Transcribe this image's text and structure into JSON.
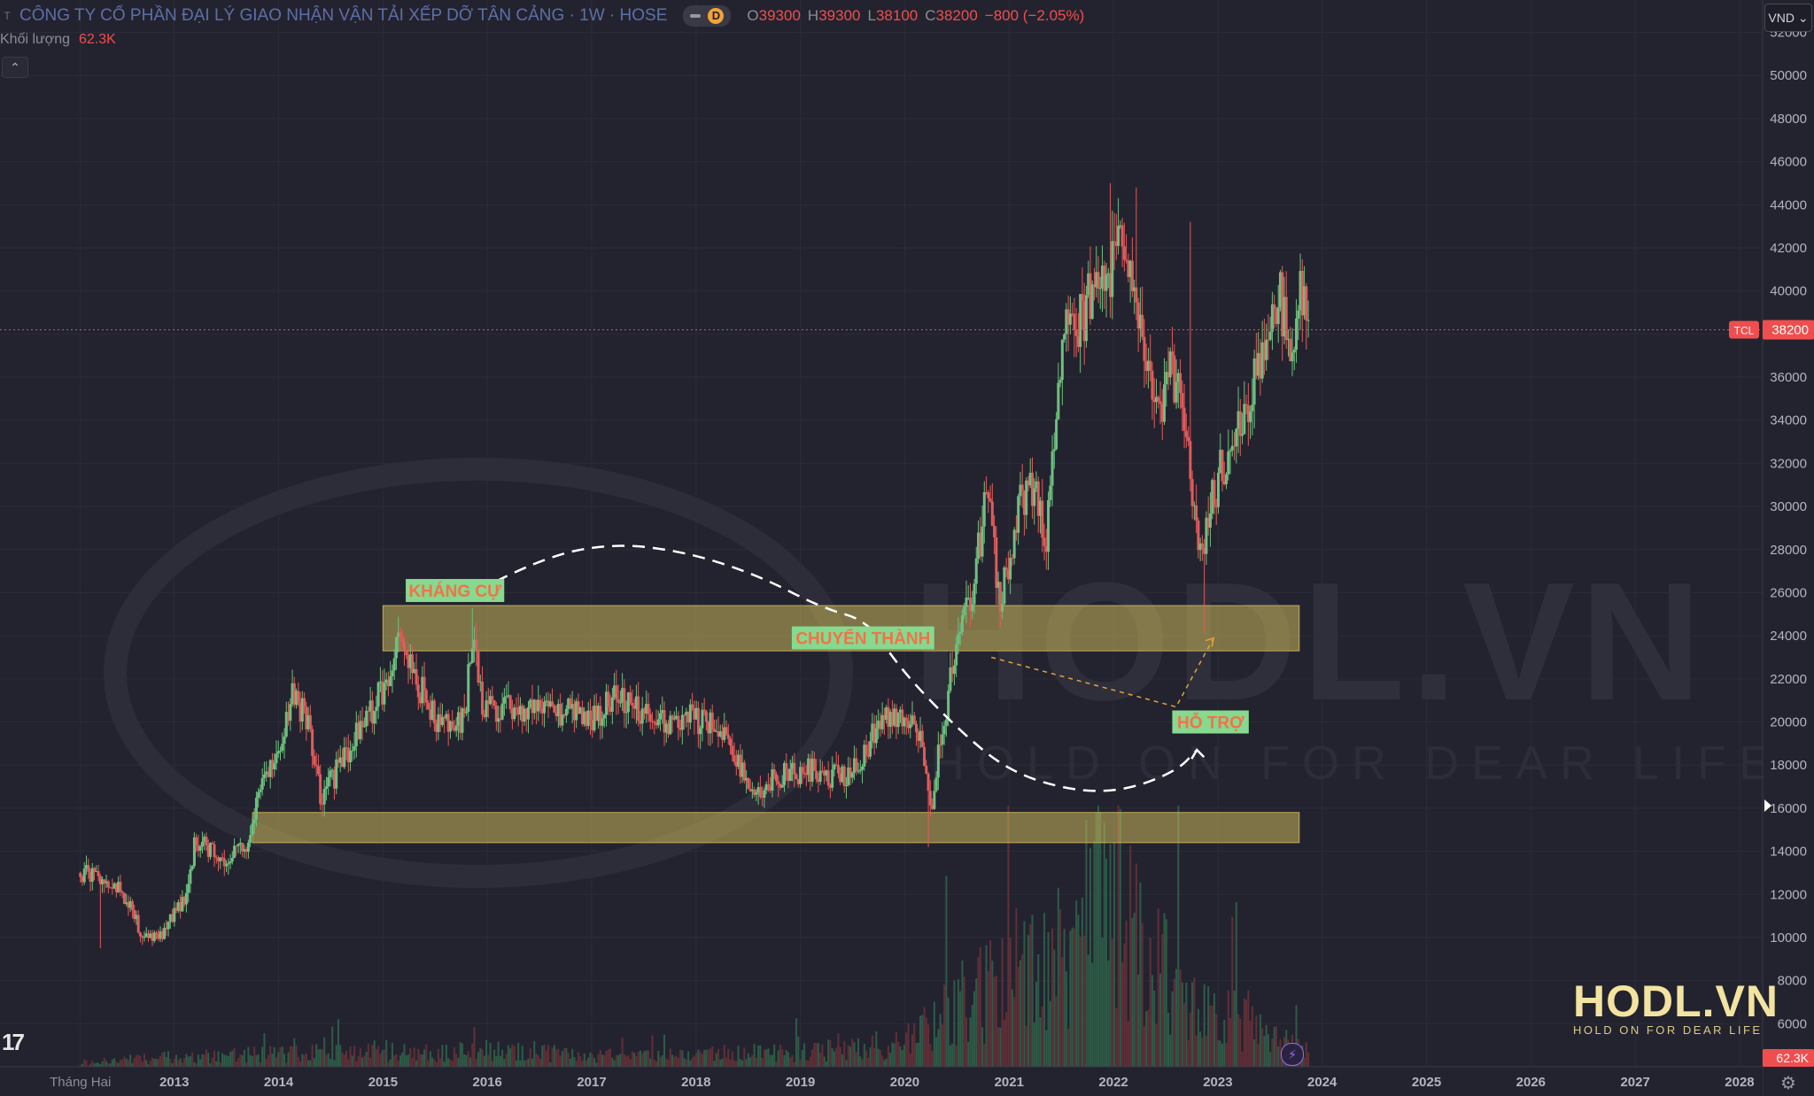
{
  "header": {
    "symbol_icon": "T",
    "title": "CÔNG TY CỔ PHẦN ĐẠI LÝ GIAO NHẬN VẬN TẢI XẾP DỠ TÂN CẢNG · 1W · HOSE",
    "badge": "D",
    "ohlc": [
      {
        "k": "O",
        "v": "39300"
      },
      {
        "k": "H",
        "v": "39300"
      },
      {
        "k": "L",
        "v": "38100"
      },
      {
        "k": "C",
        "v": "38200"
      },
      {
        "k": "",
        "v": "−800 (−2.05%)"
      }
    ],
    "volume_label": "Khối lượng",
    "volume_value": "62.3K",
    "currency": "VND"
  },
  "colors": {
    "up": "#6fbf80",
    "down": "#e05c5c",
    "zone": "#c9b65a",
    "label_bg": "#86d98e",
    "label_text": "#f2724a",
    "price_line": "#f04e4e"
  },
  "chart_data": {
    "type": "candlestick",
    "title": "CÔNG TY CỔ PHẦN ĐẠI LÝ GIAO NHẬN VẬN TẢI XẾP DỠ TÂN CẢNG · 1W · HOSE",
    "ticker": "TCL",
    "last_price": 38200,
    "last_price_label": "38200",
    "volume_last_label": "62.3K",
    "y_ticks": [
      52000,
      50000,
      48000,
      46000,
      44000,
      42000,
      40000,
      38000,
      36000,
      34000,
      32000,
      30000,
      28000,
      26000,
      24000,
      22000,
      20000,
      18000,
      16000,
      14000,
      12000,
      10000,
      8000,
      6000
    ],
    "y_tick_labels": [
      "52000",
      "50000",
      "48000",
      "46000",
      "44000",
      "42000",
      "40000",
      "38000",
      "36000",
      "34000",
      "32000",
      "30000",
      "28000",
      "26000",
      "24000",
      "22000",
      "20000",
      "18000",
      "16000",
      "14000",
      "12000",
      "10000",
      "8000",
      "6000"
    ],
    "ylim": [
      4000,
      53500
    ],
    "x_labels": [
      "Tháng Hai",
      "2013",
      "2014",
      "2015",
      "2016",
      "2017",
      "2018",
      "2019",
      "2020",
      "2021",
      "2022",
      "2023",
      "2024",
      "2025",
      "2026",
      "2027",
      "2028"
    ],
    "x_label_dates": [
      2012.1,
      2013,
      2014,
      2015,
      2016,
      2017,
      2018,
      2019,
      2020,
      2021,
      2022,
      2023,
      2024,
      2025,
      2026,
      2027,
      2028
    ],
    "xlim": [
      2011.33,
      2028.17
    ],
    "price_path": [
      [
        2012.1,
        13000
      ],
      [
        2012.3,
        12800
      ],
      [
        2012.5,
        12200
      ],
      [
        2012.7,
        10000
      ],
      [
        2012.85,
        9900
      ],
      [
        2013.1,
        11800
      ],
      [
        2013.2,
        14500
      ],
      [
        2013.35,
        14000
      ],
      [
        2013.5,
        13600
      ],
      [
        2013.7,
        14200
      ],
      [
        2013.85,
        17500
      ],
      [
        2014.0,
        18800
      ],
      [
        2014.15,
        21500
      ],
      [
        2014.3,
        19500
      ],
      [
        2014.4,
        16500
      ],
      [
        2014.6,
        18000
      ],
      [
        2014.8,
        19800
      ],
      [
        2015.0,
        21500
      ],
      [
        2015.15,
        23800
      ],
      [
        2015.3,
        22200
      ],
      [
        2015.5,
        20000
      ],
      [
        2015.7,
        19800
      ],
      [
        2015.8,
        20500
      ],
      [
        2015.85,
        24500
      ],
      [
        2015.95,
        20500
      ],
      [
        2016.15,
        20800
      ],
      [
        2016.35,
        20300
      ],
      [
        2016.6,
        20600
      ],
      [
        2016.8,
        20400
      ],
      [
        2017.0,
        20000
      ],
      [
        2017.2,
        21000
      ],
      [
        2017.45,
        20700
      ],
      [
        2017.7,
        19800
      ],
      [
        2017.95,
        20200
      ],
      [
        2018.2,
        19800
      ],
      [
        2018.4,
        18000
      ],
      [
        2018.6,
        17000
      ],
      [
        2018.85,
        17500
      ],
      [
        2019.1,
        17800
      ],
      [
        2019.3,
        17400
      ],
      [
        2019.55,
        17800
      ],
      [
        2019.7,
        19500
      ],
      [
        2019.85,
        20500
      ],
      [
        2020.05,
        20000
      ],
      [
        2020.15,
        19000
      ],
      [
        2020.25,
        15500
      ],
      [
        2020.35,
        19500
      ],
      [
        2020.5,
        23500
      ],
      [
        2020.65,
        26000
      ],
      [
        2020.8,
        31000
      ],
      [
        2020.9,
        25500
      ],
      [
        2021.0,
        27500
      ],
      [
        2021.1,
        30000
      ],
      [
        2021.25,
        31000
      ],
      [
        2021.35,
        28500
      ],
      [
        2021.45,
        34000
      ],
      [
        2021.55,
        39000
      ],
      [
        2021.7,
        38500
      ],
      [
        2021.85,
        41500
      ],
      [
        2021.95,
        40500
      ],
      [
        2022.05,
        42500
      ],
      [
        2022.15,
        40500
      ],
      [
        2022.25,
        39000
      ],
      [
        2022.35,
        36000
      ],
      [
        2022.45,
        34500
      ],
      [
        2022.55,
        36500
      ],
      [
        2022.65,
        34500
      ],
      [
        2022.75,
        31000
      ],
      [
        2022.85,
        27500
      ],
      [
        2022.95,
        30500
      ],
      [
        2023.05,
        32000
      ],
      [
        2023.2,
        33500
      ],
      [
        2023.35,
        36000
      ],
      [
        2023.5,
        38500
      ],
      [
        2023.6,
        39500
      ],
      [
        2023.7,
        37000
      ],
      [
        2023.8,
        40000
      ],
      [
        2023.87,
        38200
      ]
    ],
    "spikes": [
      {
        "x": 2015.85,
        "high": 25300
      },
      {
        "x": 2020.22,
        "low": 14200
      },
      {
        "x": 2021.97,
        "high": 45000
      },
      {
        "x": 2022.22,
        "high": 44800
      },
      {
        "x": 2022.73,
        "high": 43200
      },
      {
        "x": 2022.88,
        "low": 24100
      },
      {
        "x": 2012.3,
        "low": 9500
      }
    ],
    "volume_max": 14000,
    "volume_profile": [
      [
        2012.1,
        300
      ],
      [
        2013.0,
        600
      ],
      [
        2014.0,
        800
      ],
      [
        2015.0,
        1000
      ],
      [
        2016.0,
        1000
      ],
      [
        2017.0,
        700
      ],
      [
        2018.0,
        800
      ],
      [
        2019.0,
        900
      ],
      [
        2020.0,
        1500
      ],
      [
        2020.5,
        4000
      ],
      [
        2020.9,
        5500
      ],
      [
        2021.3,
        6000
      ],
      [
        2021.7,
        8000
      ],
      [
        2021.95,
        11000
      ],
      [
        2022.2,
        8000
      ],
      [
        2022.6,
        5000
      ],
      [
        2023.0,
        3500
      ],
      [
        2023.5,
        1800
      ],
      [
        2023.87,
        1000
      ]
    ],
    "zones": [
      {
        "name": "resistance-support-zone",
        "y0": 23300,
        "y1": 25400,
        "x0": 2015.0,
        "x1": 2023.78
      },
      {
        "name": "lower-support-zone",
        "y0": 14400,
        "y1": 15800,
        "x0": 2013.75,
        "x1": 2023.78
      }
    ],
    "annotations": [
      {
        "text": "KHÁNG CỰ",
        "x": 2015.69,
        "y": 26100
      },
      {
        "text": "CHUYỂN THÀNH",
        "x": 2019.6,
        "y": 23900
      },
      {
        "text": "HỖ TRỢ",
        "x": 2022.93,
        "y": 20000
      }
    ],
    "dashed_arc": [
      [
        2015.91,
        26100
      ],
      [
        2016.5,
        27600
      ],
      [
        2017.2,
        28300
      ],
      [
        2017.9,
        27900
      ],
      [
        2018.6,
        26800
      ],
      [
        2019.2,
        25300
      ],
      [
        2019.65,
        24700
      ],
      [
        2019.95,
        22500
      ],
      [
        2020.5,
        19700
      ],
      [
        2021.0,
        17700
      ],
      [
        2021.6,
        16800
      ],
      [
        2022.1,
        16800
      ],
      [
        2022.6,
        17700
      ],
      [
        2022.8,
        18700
      ]
    ],
    "orange_dashed": [
      [
        2020.83,
        23000
      ],
      [
        2022.6,
        20700
      ],
      [
        2022.96,
        23900
      ]
    ],
    "watermark": {
      "name": "HODL.VN",
      "tagline": "HOLD ON FOR DEAR LIFE"
    }
  },
  "footer": {
    "tv_logo": "17",
    "brand_name": "HODL.VN",
    "brand_tag": "HOLD ON FOR DEAR LIFE"
  }
}
